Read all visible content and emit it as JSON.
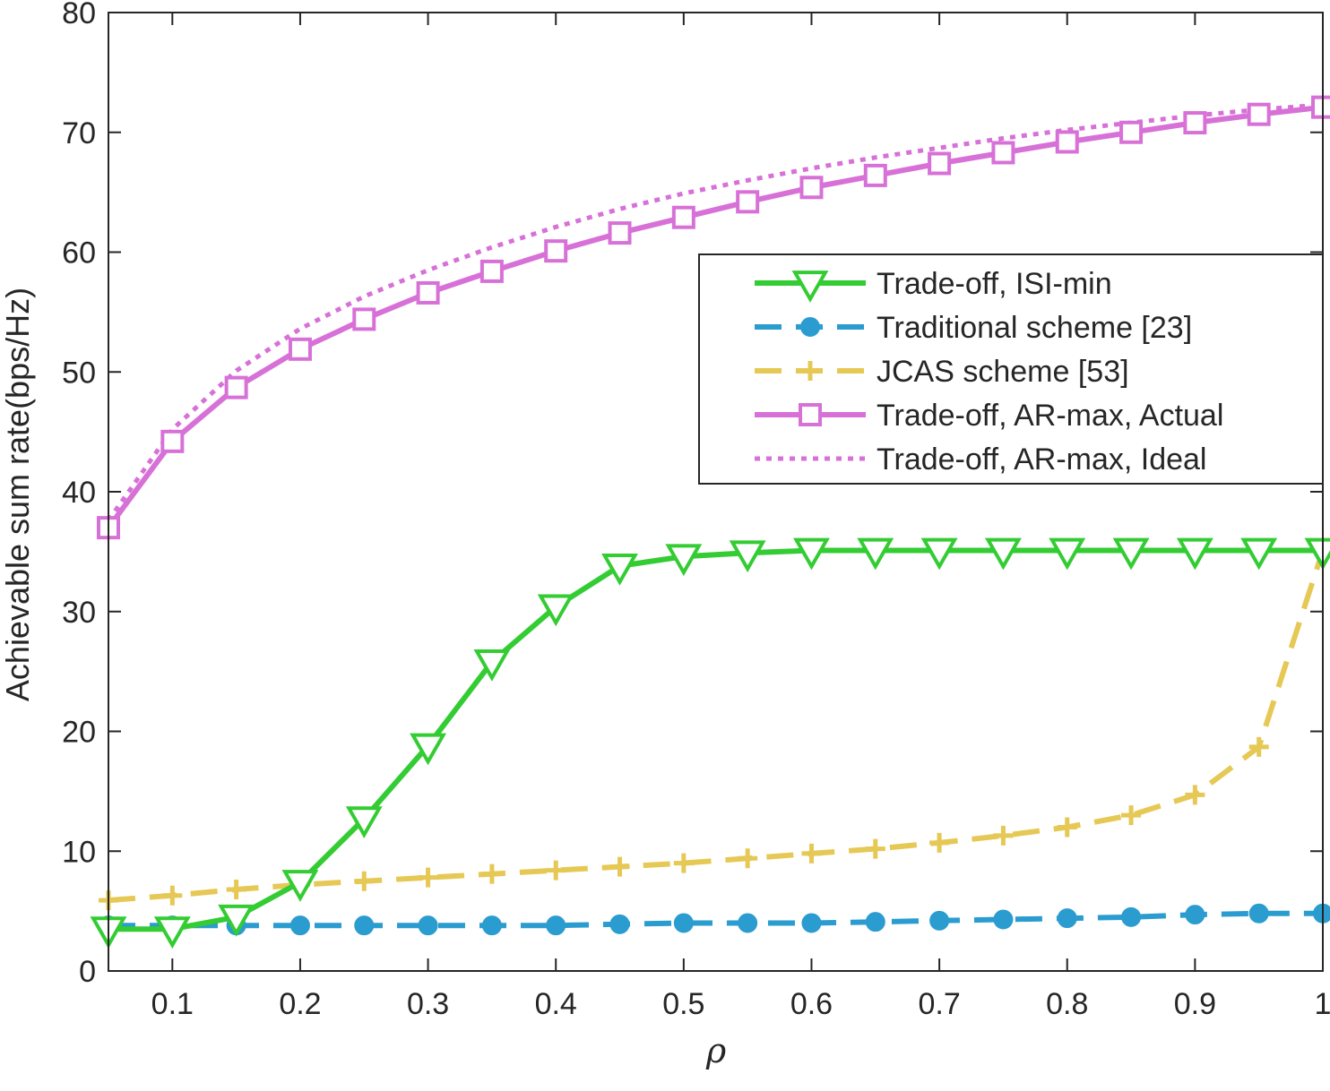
{
  "chart_data": {
    "type": "line",
    "title": "",
    "xlabel": "ρ",
    "ylabel": "Achievable sum rate(bps/Hz)",
    "xlim": [
      0.05,
      1
    ],
    "ylim": [
      0,
      80
    ],
    "xticks": [
      0.1,
      0.2,
      0.3,
      0.4,
      0.5,
      0.6,
      0.7,
      0.8,
      0.9,
      1
    ],
    "xtick_labels": [
      "0.1",
      "0.2",
      "0.3",
      "0.4",
      "0.5",
      "0.6",
      "0.7",
      "0.8",
      "0.9",
      "1"
    ],
    "yticks": [
      0,
      10,
      20,
      30,
      40,
      50,
      60,
      70,
      80
    ],
    "ytick_labels": [
      "0",
      "10",
      "20",
      "30",
      "40",
      "50",
      "60",
      "70",
      "80"
    ],
    "grid": false,
    "legend_position": "top-right",
    "x": [
      0.05,
      0.1,
      0.15,
      0.2,
      0.25,
      0.3,
      0.35,
      0.4,
      0.45,
      0.5,
      0.55,
      0.6,
      0.65,
      0.7,
      0.75,
      0.8,
      0.85,
      0.9,
      0.95,
      1
    ],
    "series": [
      {
        "name": "Trade-off, ISI-min",
        "color": "#33cc33",
        "line": "solid",
        "marker": "triangle-down",
        "values": [
          3.5,
          3.5,
          4.5,
          7.4,
          12.7,
          18.8,
          25.8,
          30.4,
          33.8,
          34.6,
          34.9,
          35.1,
          35.1,
          35.1,
          35.1,
          35.1,
          35.1,
          35.1,
          35.1,
          35.1
        ]
      },
      {
        "name": "Traditional scheme [23]",
        "color": "#2b9ccf",
        "line": "dashed",
        "marker": "circle",
        "values": [
          3.8,
          3.8,
          3.8,
          3.8,
          3.8,
          3.8,
          3.8,
          3.8,
          3.9,
          4.0,
          4.0,
          4.0,
          4.1,
          4.2,
          4.3,
          4.4,
          4.5,
          4.7,
          4.8,
          4.8
        ]
      },
      {
        "name": "JCAS scheme [53]",
        "color": "#e6c855",
        "line": "dashed",
        "marker": "plus",
        "values": [
          5.9,
          6.3,
          6.8,
          7.2,
          7.5,
          7.8,
          8.1,
          8.4,
          8.7,
          9.0,
          9.4,
          9.8,
          10.2,
          10.7,
          11.3,
          12.0,
          13.0,
          14.7,
          18.7,
          35.1
        ]
      },
      {
        "name": "Trade-off, AR-max, Actual",
        "color": "#d771d7",
        "line": "solid",
        "marker": "square",
        "values": [
          37.0,
          44.2,
          48.7,
          51.9,
          54.4,
          56.6,
          58.4,
          60.1,
          61.6,
          62.9,
          64.2,
          65.4,
          66.4,
          67.4,
          68.3,
          69.2,
          70.0,
          70.8,
          71.5,
          72.1
        ]
      },
      {
        "name": "Trade-off, AR-max, Ideal",
        "color": "#d771d7",
        "line": "dotted",
        "marker": "none",
        "values": [
          37.6,
          45.2,
          50.1,
          53.6,
          56.3,
          58.5,
          60.4,
          62.1,
          63.6,
          64.9,
          66.0,
          67.0,
          67.9,
          68.7,
          69.5,
          70.2,
          70.8,
          71.4,
          71.9,
          72.3
        ]
      }
    ]
  }
}
